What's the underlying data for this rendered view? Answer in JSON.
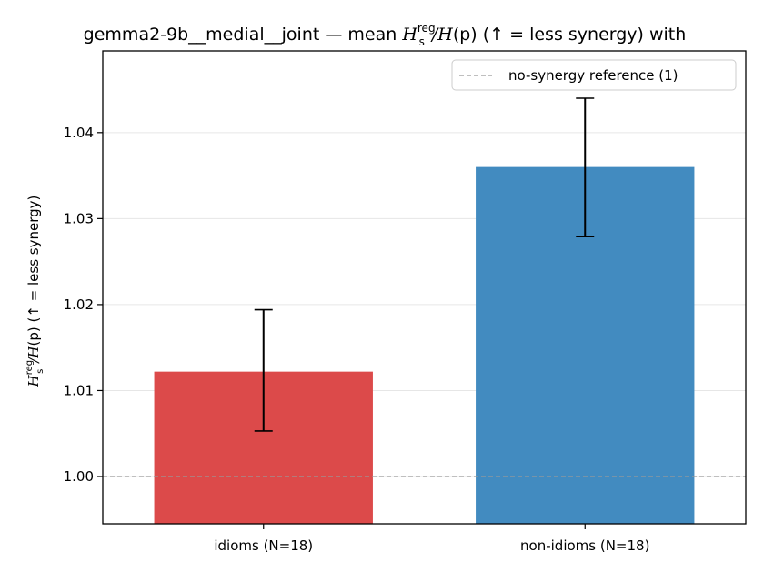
{
  "chart_data": {
    "type": "bar",
    "title": {
      "prefix": "gemma2-9b__medial__joint — mean ",
      "H": "H",
      "sub": "s",
      "sup": "reg",
      "frac": "/",
      "Hp": "H",
      "paren": "(p)",
      "suffix": "  (↑ = less synergy) with"
    },
    "ylabel": {
      "H": "H",
      "sub": "s",
      "sup": "reg",
      "frac": "/",
      "Hp": "H",
      "paren": "(p)",
      "suffix": "  (↑ = less synergy)"
    },
    "categories": [
      "idioms (N=18)",
      "non-idioms (N=18)"
    ],
    "values": [
      1.0122,
      1.036
    ],
    "errors": [
      [
        1.0053,
        1.0194
      ],
      [
        1.0279,
        1.044
      ]
    ],
    "colors": [
      "#dc4a4a",
      "#428bc0"
    ],
    "ylim": [
      0.9945,
      1.0495
    ],
    "yticks": [
      1.0,
      1.01,
      1.02,
      1.03,
      1.04
    ],
    "ytick_labels": [
      "1.00",
      "1.01",
      "1.02",
      "1.03",
      "1.04"
    ],
    "reference_line": {
      "value": 1.0,
      "label": "no-synergy reference (1)",
      "color": "#999999"
    },
    "grid": "horizontal",
    "legend_position": "top-right"
  }
}
